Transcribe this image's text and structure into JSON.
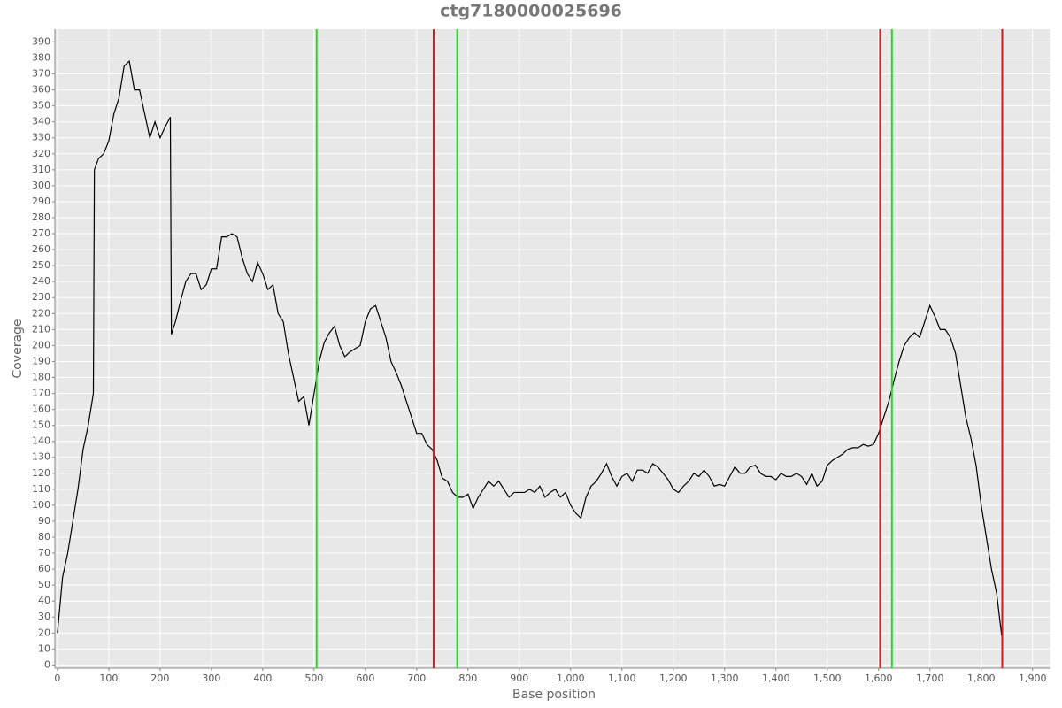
{
  "chart_data": {
    "type": "line",
    "title": "ctg7180000025696",
    "x_label": "Base position",
    "y_label": "Coverage",
    "x": [
      0,
      10,
      20,
      30,
      40,
      50,
      60,
      70,
      72,
      80,
      90,
      100,
      110,
      120,
      130,
      140,
      150,
      160,
      170,
      180,
      190,
      200,
      210,
      220,
      222,
      230,
      240,
      250,
      260,
      270,
      280,
      290,
      300,
      310,
      320,
      330,
      340,
      350,
      360,
      370,
      380,
      390,
      400,
      410,
      420,
      430,
      440,
      450,
      460,
      470,
      480,
      490,
      500,
      510,
      520,
      530,
      540,
      550,
      560,
      570,
      580,
      590,
      600,
      610,
      620,
      630,
      640,
      650,
      660,
      670,
      680,
      690,
      700,
      710,
      720,
      730,
      740,
      750,
      760,
      770,
      780,
      790,
      800,
      810,
      820,
      830,
      840,
      850,
      860,
      870,
      880,
      890,
      900,
      910,
      920,
      930,
      940,
      950,
      960,
      970,
      980,
      990,
      1000,
      1010,
      1020,
      1030,
      1040,
      1050,
      1060,
      1070,
      1080,
      1090,
      1100,
      1110,
      1120,
      1130,
      1140,
      1150,
      1160,
      1170,
      1180,
      1190,
      1200,
      1210,
      1220,
      1230,
      1240,
      1250,
      1260,
      1270,
      1280,
      1290,
      1300,
      1310,
      1320,
      1330,
      1340,
      1350,
      1360,
      1370,
      1380,
      1390,
      1400,
      1410,
      1420,
      1430,
      1440,
      1450,
      1460,
      1470,
      1480,
      1490,
      1500,
      1510,
      1520,
      1530,
      1540,
      1550,
      1560,
      1570,
      1580,
      1590,
      1600,
      1610,
      1620,
      1630,
      1640,
      1650,
      1660,
      1670,
      1680,
      1690,
      1700,
      1710,
      1720,
      1730,
      1740,
      1750,
      1760,
      1770,
      1780,
      1790,
      1800,
      1810,
      1820,
      1830,
      1840
    ],
    "series": [
      {
        "color": "#000000",
        "values": [
          20,
          55,
          70,
          90,
          110,
          135,
          150,
          170,
          310,
          317,
          320,
          328,
          345,
          355,
          375,
          378,
          360,
          360,
          345,
          330,
          340,
          330,
          337,
          343,
          207,
          215,
          228,
          240,
          245,
          245,
          235,
          238,
          248,
          248,
          268,
          268,
          270,
          268,
          255,
          245,
          240,
          252,
          245,
          235,
          238,
          220,
          215,
          195,
          180,
          165,
          168,
          150,
          170,
          190,
          202,
          208,
          212,
          200,
          193,
          196,
          198,
          200,
          215,
          223,
          225,
          215,
          205,
          190,
          183,
          175,
          165,
          155,
          145,
          145,
          138,
          135,
          128,
          117,
          115,
          108,
          105,
          105,
          107,
          98,
          105,
          110,
          115,
          112,
          115,
          110,
          105,
          108,
          108,
          108,
          110,
          108,
          112,
          105,
          108,
          110,
          105,
          108,
          100,
          95,
          92,
          105,
          112,
          115,
          120,
          126,
          118,
          112,
          118,
          120,
          115,
          122,
          122,
          120,
          126,
          124,
          120,
          116,
          110,
          108,
          112,
          115,
          120,
          118,
          122,
          118,
          112,
          113,
          112,
          118,
          124,
          120,
          120,
          124,
          125,
          120,
          118,
          118,
          116,
          120,
          118,
          118,
          120,
          118,
          113,
          120,
          112,
          115,
          125,
          128,
          130,
          132,
          135,
          136,
          136,
          138,
          137,
          138,
          145,
          155,
          165,
          178,
          190,
          200,
          205,
          208,
          205,
          215,
          225,
          218,
          210,
          210,
          205,
          195,
          175,
          155,
          142,
          125,
          100,
          80,
          60,
          45,
          18
        ]
      }
    ],
    "markers": [
      {
        "x": 505,
        "color": "#22dd22"
      },
      {
        "x": 733,
        "color": "#ee1111"
      },
      {
        "x": 779,
        "color": "#22dd22"
      },
      {
        "x": 1603,
        "color": "#ee1111"
      },
      {
        "x": 1626,
        "color": "#22dd22"
      },
      {
        "x": 1841,
        "color": "#ee1111"
      }
    ],
    "xlim": [
      -5,
      1935
    ],
    "ylim": [
      -2,
      398
    ],
    "xticks": [
      0,
      100,
      200,
      300,
      400,
      500,
      600,
      700,
      800,
      900,
      {
        "value": 1000,
        "label": "1,000"
      },
      {
        "value": 1100,
        "label": "1,100"
      },
      {
        "value": 1200,
        "label": "1,200"
      },
      {
        "value": 1300,
        "label": "1,300"
      },
      {
        "value": 1400,
        "label": "1,400"
      },
      {
        "value": 1500,
        "label": "1,500"
      },
      {
        "value": 1600,
        "label": "1,600"
      },
      {
        "value": 1700,
        "label": "1,700"
      },
      {
        "value": 1800,
        "label": "1,800"
      },
      {
        "value": 1900,
        "label": "1,900"
      }
    ],
    "yticks": [
      0,
      10,
      20,
      30,
      40,
      50,
      60,
      70,
      80,
      90,
      100,
      110,
      120,
      130,
      140,
      150,
      160,
      170,
      180,
      190,
      200,
      210,
      220,
      230,
      240,
      250,
      260,
      270,
      280,
      290,
      300,
      310,
      320,
      330,
      340,
      350,
      360,
      370,
      380,
      390
    ],
    "grid": true
  }
}
